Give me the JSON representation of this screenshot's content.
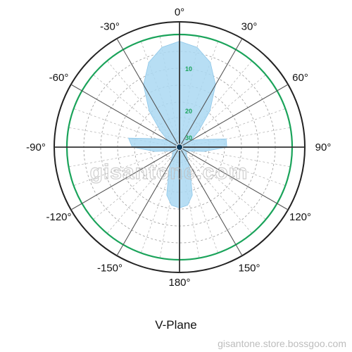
{
  "chart_data": {
    "type": "polar",
    "title": "V-Plane",
    "angle_labels": [
      {
        "angle": 0,
        "label": "0°"
      },
      {
        "angle": 30,
        "label": "30°"
      },
      {
        "angle": 60,
        "label": "60°"
      },
      {
        "angle": 90,
        "label": "90°"
      },
      {
        "angle": 120,
        "label": "120°"
      },
      {
        "angle": 150,
        "label": "150°"
      },
      {
        "angle": 180,
        "label": "180°"
      },
      {
        "angle": -150,
        "label": "-150°"
      },
      {
        "angle": -120,
        "label": "-120°"
      },
      {
        "angle": -90,
        "label": "-90°"
      },
      {
        "angle": -60,
        "label": "-60°"
      },
      {
        "angle": -30,
        "label": "-30°"
      }
    ],
    "ring_labels": [
      "10",
      "20",
      "30"
    ],
    "grid": true,
    "series": [
      {
        "color": "#aad8f2",
        "pattern": [
          {
            "angle": 0,
            "value": 0.94
          },
          {
            "angle": 10,
            "value": 0.9
          },
          {
            "angle": 20,
            "value": 0.8
          },
          {
            "angle": 30,
            "value": 0.64
          },
          {
            "angle": 40,
            "value": 0.42
          },
          {
            "angle": 50,
            "value": 0.22
          },
          {
            "angle": 60,
            "value": 0.12
          },
          {
            "angle": 70,
            "value": 0.2
          },
          {
            "angle": 80,
            "value": 0.42
          },
          {
            "angle": 90,
            "value": 0.42
          },
          {
            "angle": 100,
            "value": 0.22
          },
          {
            "angle": 110,
            "value": 0.1
          },
          {
            "angle": 125,
            "value": 0.07
          },
          {
            "angle": 140,
            "value": 0.1
          },
          {
            "angle": 155,
            "value": 0.22
          },
          {
            "angle": 165,
            "value": 0.44
          },
          {
            "angle": 172,
            "value": 0.52
          },
          {
            "angle": 180,
            "value": 0.54
          },
          {
            "angle": 188,
            "value": 0.52
          },
          {
            "angle": 195,
            "value": 0.44
          },
          {
            "angle": 205,
            "value": 0.22
          },
          {
            "angle": 220,
            "value": 0.1
          },
          {
            "angle": 235,
            "value": 0.07
          },
          {
            "angle": 250,
            "value": 0.1
          },
          {
            "angle": 260,
            "value": 0.22
          },
          {
            "angle": 270,
            "value": 0.42
          },
          {
            "angle": 280,
            "value": 0.46
          },
          {
            "angle": 290,
            "value": 0.22
          },
          {
            "angle": 300,
            "value": 0.12
          },
          {
            "angle": 310,
            "value": 0.22
          },
          {
            "angle": 320,
            "value": 0.42
          },
          {
            "angle": 330,
            "value": 0.64
          },
          {
            "angle": 340,
            "value": 0.8
          },
          {
            "angle": 350,
            "value": 0.9
          },
          {
            "angle": 360,
            "value": 0.94
          }
        ]
      }
    ],
    "reference_circle_color": "#1aa35a"
  },
  "watermark": "gisantone.com",
  "footer_watermark": "gisantone.store.bossgoo.com"
}
